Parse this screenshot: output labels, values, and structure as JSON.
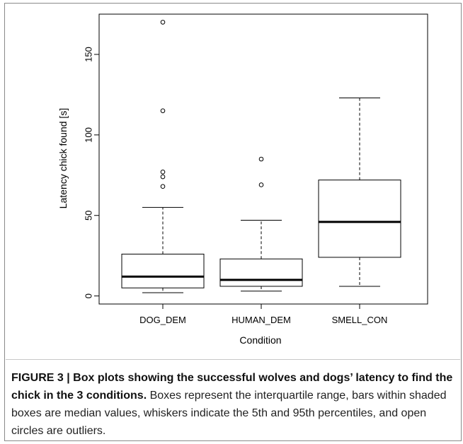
{
  "chart_data": {
    "type": "box",
    "categories": [
      "DOG_DEM",
      "HUMAN_DEM",
      "SMELL_CON"
    ],
    "xlabel": "Condition",
    "ylabel": "Latency chick found [s]",
    "ylim": [
      -5,
      175
    ],
    "yticks": [
      0,
      50,
      100,
      150
    ],
    "boxes": [
      {
        "category": "DOG_DEM",
        "whisker_low": 2,
        "q1": 5,
        "median": 12,
        "q3": 26,
        "whisker_high": 55,
        "outliers": [
          68,
          74,
          77,
          115,
          170
        ]
      },
      {
        "category": "HUMAN_DEM",
        "whisker_low": 3,
        "q1": 6,
        "median": 10,
        "q3": 23,
        "whisker_high": 47,
        "outliers": [
          69,
          85
        ]
      },
      {
        "category": "SMELL_CON",
        "whisker_low": 6,
        "q1": 24,
        "median": 46,
        "q3": 72,
        "whisker_high": 123,
        "outliers": []
      }
    ]
  },
  "caption": {
    "bold": "FIGURE 3 | Box plots showing the successful wolves and dogs’ latency to find the chick in the 3 conditions.",
    "body": " Boxes represent the interquartile range, bars within shaded boxes are median values, whiskers indicate the 5th and 95th percentiles, and open circles are outliers."
  }
}
